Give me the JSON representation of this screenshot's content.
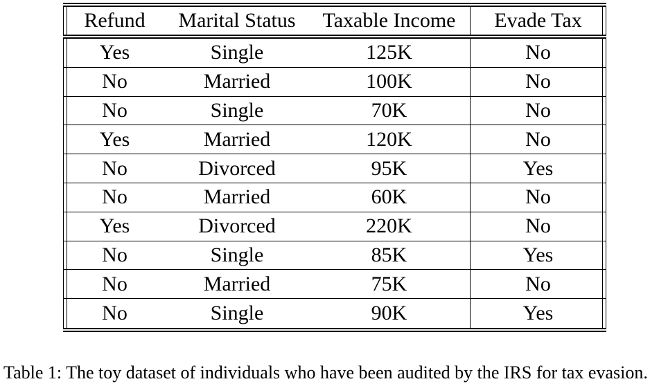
{
  "table": {
    "headers": [
      "Refund",
      "Marital Status",
      "Taxable Income",
      "Evade Tax"
    ],
    "rows": [
      [
        "Yes",
        "Single",
        "125K",
        "No"
      ],
      [
        "No",
        "Married",
        "100K",
        "No"
      ],
      [
        "No",
        "Single",
        "70K",
        "No"
      ],
      [
        "Yes",
        "Married",
        "120K",
        "No"
      ],
      [
        "No",
        "Divorced",
        "95K",
        "Yes"
      ],
      [
        "No",
        "Married",
        "60K",
        "No"
      ],
      [
        "Yes",
        "Divorced",
        "220K",
        "No"
      ],
      [
        "No",
        "Single",
        "85K",
        "Yes"
      ],
      [
        "No",
        "Married",
        "75K",
        "No"
      ],
      [
        "No",
        "Single",
        "90K",
        "Yes"
      ]
    ]
  },
  "caption": "Table 1: The toy dataset of individuals who have been audited by the IRS for tax evasion."
}
